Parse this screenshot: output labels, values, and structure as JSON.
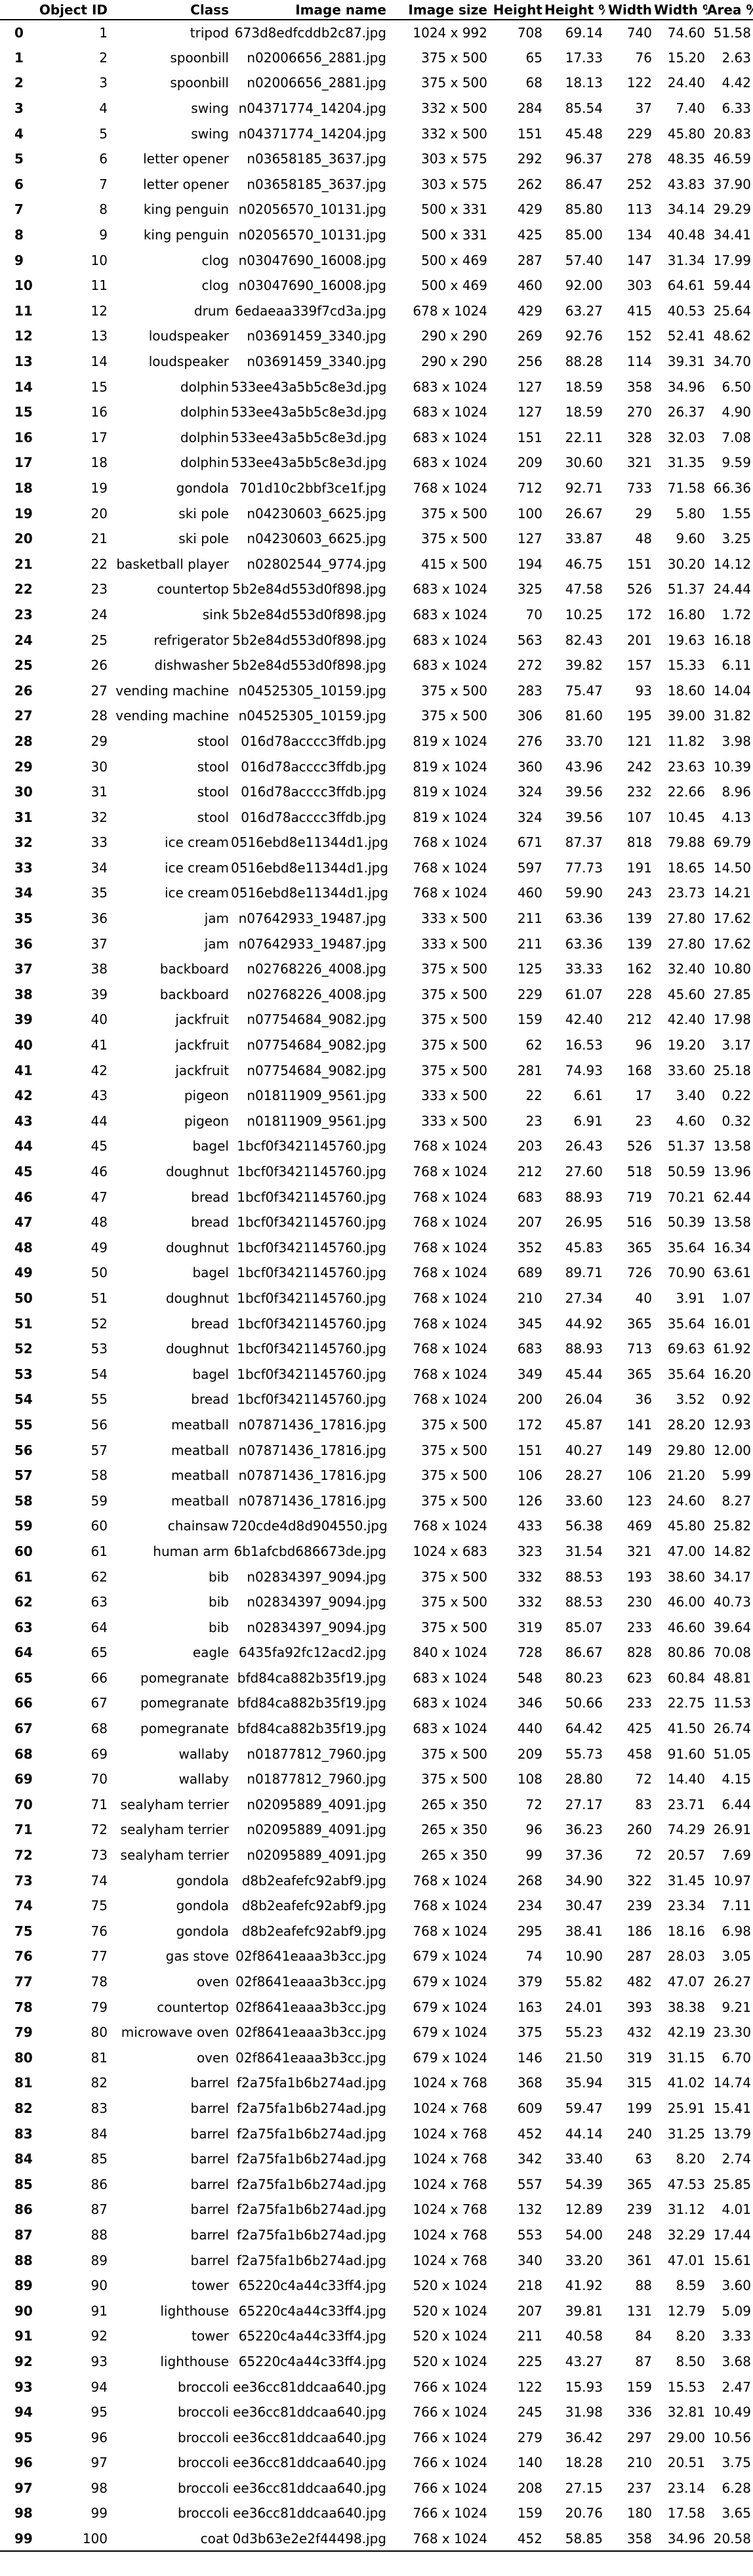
{
  "table": {
    "columns": [
      "",
      "Object ID",
      "Class",
      "Image name",
      "Image size",
      "Height",
      "Height %",
      "Width",
      "Width %",
      "Area %"
    ],
    "rows": [
      [
        "0",
        "1",
        "tripod",
        "673d8edfcddb2c87.jpg",
        "1024 x 992",
        "708",
        "69.14",
        "740",
        "74.60",
        "51.58"
      ],
      [
        "1",
        "2",
        "spoonbill",
        "n02006656_2881.jpg",
        "375 x 500",
        "65",
        "17.33",
        "76",
        "15.20",
        "2.63"
      ],
      [
        "2",
        "3",
        "spoonbill",
        "n02006656_2881.jpg",
        "375 x 500",
        "68",
        "18.13",
        "122",
        "24.40",
        "4.42"
      ],
      [
        "3",
        "4",
        "swing",
        "n04371774_14204.jpg",
        "332 x 500",
        "284",
        "85.54",
        "37",
        "7.40",
        "6.33"
      ],
      [
        "4",
        "5",
        "swing",
        "n04371774_14204.jpg",
        "332 x 500",
        "151",
        "45.48",
        "229",
        "45.80",
        "20.83"
      ],
      [
        "5",
        "6",
        "letter opener",
        "n03658185_3637.jpg",
        "303 x 575",
        "292",
        "96.37",
        "278",
        "48.35",
        "46.59"
      ],
      [
        "6",
        "7",
        "letter opener",
        "n03658185_3637.jpg",
        "303 x 575",
        "262",
        "86.47",
        "252",
        "43.83",
        "37.90"
      ],
      [
        "7",
        "8",
        "king penguin",
        "n02056570_10131.jpg",
        "500 x 331",
        "429",
        "85.80",
        "113",
        "34.14",
        "29.29"
      ],
      [
        "8",
        "9",
        "king penguin",
        "n02056570_10131.jpg",
        "500 x 331",
        "425",
        "85.00",
        "134",
        "40.48",
        "34.41"
      ],
      [
        "9",
        "10",
        "clog",
        "n03047690_16008.jpg",
        "500 x 469",
        "287",
        "57.40",
        "147",
        "31.34",
        "17.99"
      ],
      [
        "10",
        "11",
        "clog",
        "n03047690_16008.jpg",
        "500 x 469",
        "460",
        "92.00",
        "303",
        "64.61",
        "59.44"
      ],
      [
        "11",
        "12",
        "drum",
        "6edaeaa339f7cd3a.jpg",
        "678 x 1024",
        "429",
        "63.27",
        "415",
        "40.53",
        "25.64"
      ],
      [
        "12",
        "13",
        "loudspeaker",
        "n03691459_3340.jpg",
        "290 x 290",
        "269",
        "92.76",
        "152",
        "52.41",
        "48.62"
      ],
      [
        "13",
        "14",
        "loudspeaker",
        "n03691459_3340.jpg",
        "290 x 290",
        "256",
        "88.28",
        "114",
        "39.31",
        "34.70"
      ],
      [
        "14",
        "15",
        "dolphin",
        "533ee43a5b5c8e3d.jpg",
        "683 x 1024",
        "127",
        "18.59",
        "358",
        "34.96",
        "6.50"
      ],
      [
        "15",
        "16",
        "dolphin",
        "533ee43a5b5c8e3d.jpg",
        "683 x 1024",
        "127",
        "18.59",
        "270",
        "26.37",
        "4.90"
      ],
      [
        "16",
        "17",
        "dolphin",
        "533ee43a5b5c8e3d.jpg",
        "683 x 1024",
        "151",
        "22.11",
        "328",
        "32.03",
        "7.08"
      ],
      [
        "17",
        "18",
        "dolphin",
        "533ee43a5b5c8e3d.jpg",
        "683 x 1024",
        "209",
        "30.60",
        "321",
        "31.35",
        "9.59"
      ],
      [
        "18",
        "19",
        "gondola",
        "701d10c2bbf3ce1f.jpg",
        "768 x 1024",
        "712",
        "92.71",
        "733",
        "71.58",
        "66.36"
      ],
      [
        "19",
        "20",
        "ski pole",
        "n04230603_6625.jpg",
        "375 x 500",
        "100",
        "26.67",
        "29",
        "5.80",
        "1.55"
      ],
      [
        "20",
        "21",
        "ski pole",
        "n04230603_6625.jpg",
        "375 x 500",
        "127",
        "33.87",
        "48",
        "9.60",
        "3.25"
      ],
      [
        "21",
        "22",
        "basketball player",
        "n02802544_9774.jpg",
        "415 x 500",
        "194",
        "46.75",
        "151",
        "30.20",
        "14.12"
      ],
      [
        "22",
        "23",
        "countertop",
        "5b2e84d553d0f898.jpg",
        "683 x 1024",
        "325",
        "47.58",
        "526",
        "51.37",
        "24.44"
      ],
      [
        "23",
        "24",
        "sink",
        "5b2e84d553d0f898.jpg",
        "683 x 1024",
        "70",
        "10.25",
        "172",
        "16.80",
        "1.72"
      ],
      [
        "24",
        "25",
        "refrigerator",
        "5b2e84d553d0f898.jpg",
        "683 x 1024",
        "563",
        "82.43",
        "201",
        "19.63",
        "16.18"
      ],
      [
        "25",
        "26",
        "dishwasher",
        "5b2e84d553d0f898.jpg",
        "683 x 1024",
        "272",
        "39.82",
        "157",
        "15.33",
        "6.11"
      ],
      [
        "26",
        "27",
        "vending machine",
        "n04525305_10159.jpg",
        "375 x 500",
        "283",
        "75.47",
        "93",
        "18.60",
        "14.04"
      ],
      [
        "27",
        "28",
        "vending machine",
        "n04525305_10159.jpg",
        "375 x 500",
        "306",
        "81.60",
        "195",
        "39.00",
        "31.82"
      ],
      [
        "28",
        "29",
        "stool",
        "016d78acccc3ffdb.jpg",
        "819 x 1024",
        "276",
        "33.70",
        "121",
        "11.82",
        "3.98"
      ],
      [
        "29",
        "30",
        "stool",
        "016d78acccc3ffdb.jpg",
        "819 x 1024",
        "360",
        "43.96",
        "242",
        "23.63",
        "10.39"
      ],
      [
        "30",
        "31",
        "stool",
        "016d78acccc3ffdb.jpg",
        "819 x 1024",
        "324",
        "39.56",
        "232",
        "22.66",
        "8.96"
      ],
      [
        "31",
        "32",
        "stool",
        "016d78acccc3ffdb.jpg",
        "819 x 1024",
        "324",
        "39.56",
        "107",
        "10.45",
        "4.13"
      ],
      [
        "32",
        "33",
        "ice cream",
        "0516ebd8e11344d1.jpg",
        "768 x 1024",
        "671",
        "87.37",
        "818",
        "79.88",
        "69.79"
      ],
      [
        "33",
        "34",
        "ice cream",
        "0516ebd8e11344d1.jpg",
        "768 x 1024",
        "597",
        "77.73",
        "191",
        "18.65",
        "14.50"
      ],
      [
        "34",
        "35",
        "ice cream",
        "0516ebd8e11344d1.jpg",
        "768 x 1024",
        "460",
        "59.90",
        "243",
        "23.73",
        "14.21"
      ],
      [
        "35",
        "36",
        "jam",
        "n07642933_19487.jpg",
        "333 x 500",
        "211",
        "63.36",
        "139",
        "27.80",
        "17.62"
      ],
      [
        "36",
        "37",
        "jam",
        "n07642933_19487.jpg",
        "333 x 500",
        "211",
        "63.36",
        "139",
        "27.80",
        "17.62"
      ],
      [
        "37",
        "38",
        "backboard",
        "n02768226_4008.jpg",
        "375 x 500",
        "125",
        "33.33",
        "162",
        "32.40",
        "10.80"
      ],
      [
        "38",
        "39",
        "backboard",
        "n02768226_4008.jpg",
        "375 x 500",
        "229",
        "61.07",
        "228",
        "45.60",
        "27.85"
      ],
      [
        "39",
        "40",
        "jackfruit",
        "n07754684_9082.jpg",
        "375 x 500",
        "159",
        "42.40",
        "212",
        "42.40",
        "17.98"
      ],
      [
        "40",
        "41",
        "jackfruit",
        "n07754684_9082.jpg",
        "375 x 500",
        "62",
        "16.53",
        "96",
        "19.20",
        "3.17"
      ],
      [
        "41",
        "42",
        "jackfruit",
        "n07754684_9082.jpg",
        "375 x 500",
        "281",
        "74.93",
        "168",
        "33.60",
        "25.18"
      ],
      [
        "42",
        "43",
        "pigeon",
        "n01811909_9561.jpg",
        "333 x 500",
        "22",
        "6.61",
        "17",
        "3.40",
        "0.22"
      ],
      [
        "43",
        "44",
        "pigeon",
        "n01811909_9561.jpg",
        "333 x 500",
        "23",
        "6.91",
        "23",
        "4.60",
        "0.32"
      ],
      [
        "44",
        "45",
        "bagel",
        "1bcf0f3421145760.jpg",
        "768 x 1024",
        "203",
        "26.43",
        "526",
        "51.37",
        "13.58"
      ],
      [
        "45",
        "46",
        "doughnut",
        "1bcf0f3421145760.jpg",
        "768 x 1024",
        "212",
        "27.60",
        "518",
        "50.59",
        "13.96"
      ],
      [
        "46",
        "47",
        "bread",
        "1bcf0f3421145760.jpg",
        "768 x 1024",
        "683",
        "88.93",
        "719",
        "70.21",
        "62.44"
      ],
      [
        "47",
        "48",
        "bread",
        "1bcf0f3421145760.jpg",
        "768 x 1024",
        "207",
        "26.95",
        "516",
        "50.39",
        "13.58"
      ],
      [
        "48",
        "49",
        "doughnut",
        "1bcf0f3421145760.jpg",
        "768 x 1024",
        "352",
        "45.83",
        "365",
        "35.64",
        "16.34"
      ],
      [
        "49",
        "50",
        "bagel",
        "1bcf0f3421145760.jpg",
        "768 x 1024",
        "689",
        "89.71",
        "726",
        "70.90",
        "63.61"
      ],
      [
        "50",
        "51",
        "doughnut",
        "1bcf0f3421145760.jpg",
        "768 x 1024",
        "210",
        "27.34",
        "40",
        "3.91",
        "1.07"
      ],
      [
        "51",
        "52",
        "bread",
        "1bcf0f3421145760.jpg",
        "768 x 1024",
        "345",
        "44.92",
        "365",
        "35.64",
        "16.01"
      ],
      [
        "52",
        "53",
        "doughnut",
        "1bcf0f3421145760.jpg",
        "768 x 1024",
        "683",
        "88.93",
        "713",
        "69.63",
        "61.92"
      ],
      [
        "53",
        "54",
        "bagel",
        "1bcf0f3421145760.jpg",
        "768 x 1024",
        "349",
        "45.44",
        "365",
        "35.64",
        "16.20"
      ],
      [
        "54",
        "55",
        "bread",
        "1bcf0f3421145760.jpg",
        "768 x 1024",
        "200",
        "26.04",
        "36",
        "3.52",
        "0.92"
      ],
      [
        "55",
        "56",
        "meatball",
        "n07871436_17816.jpg",
        "375 x 500",
        "172",
        "45.87",
        "141",
        "28.20",
        "12.93"
      ],
      [
        "56",
        "57",
        "meatball",
        "n07871436_17816.jpg",
        "375 x 500",
        "151",
        "40.27",
        "149",
        "29.80",
        "12.00"
      ],
      [
        "57",
        "58",
        "meatball",
        "n07871436_17816.jpg",
        "375 x 500",
        "106",
        "28.27",
        "106",
        "21.20",
        "5.99"
      ],
      [
        "58",
        "59",
        "meatball",
        "n07871436_17816.jpg",
        "375 x 500",
        "126",
        "33.60",
        "123",
        "24.60",
        "8.27"
      ],
      [
        "59",
        "60",
        "chainsaw",
        "720cde4d8d904550.jpg",
        "768 x 1024",
        "433",
        "56.38",
        "469",
        "45.80",
        "25.82"
      ],
      [
        "60",
        "61",
        "human arm",
        "6b1afcbd686673de.jpg",
        "1024 x 683",
        "323",
        "31.54",
        "321",
        "47.00",
        "14.82"
      ],
      [
        "61",
        "62",
        "bib",
        "n02834397_9094.jpg",
        "375 x 500",
        "332",
        "88.53",
        "193",
        "38.60",
        "34.17"
      ],
      [
        "62",
        "63",
        "bib",
        "n02834397_9094.jpg",
        "375 x 500",
        "332",
        "88.53",
        "230",
        "46.00",
        "40.73"
      ],
      [
        "63",
        "64",
        "bib",
        "n02834397_9094.jpg",
        "375 x 500",
        "319",
        "85.07",
        "233",
        "46.60",
        "39.64"
      ],
      [
        "64",
        "65",
        "eagle",
        "6435fa92fc12acd2.jpg",
        "840 x 1024",
        "728",
        "86.67",
        "828",
        "80.86",
        "70.08"
      ],
      [
        "65",
        "66",
        "pomegranate",
        "bfd84ca882b35f19.jpg",
        "683 x 1024",
        "548",
        "80.23",
        "623",
        "60.84",
        "48.81"
      ],
      [
        "66",
        "67",
        "pomegranate",
        "bfd84ca882b35f19.jpg",
        "683 x 1024",
        "346",
        "50.66",
        "233",
        "22.75",
        "11.53"
      ],
      [
        "67",
        "68",
        "pomegranate",
        "bfd84ca882b35f19.jpg",
        "683 x 1024",
        "440",
        "64.42",
        "425",
        "41.50",
        "26.74"
      ],
      [
        "68",
        "69",
        "wallaby",
        "n01877812_7960.jpg",
        "375 x 500",
        "209",
        "55.73",
        "458",
        "91.60",
        "51.05"
      ],
      [
        "69",
        "70",
        "wallaby",
        "n01877812_7960.jpg",
        "375 x 500",
        "108",
        "28.80",
        "72",
        "14.40",
        "4.15"
      ],
      [
        "70",
        "71",
        "sealyham terrier",
        "n02095889_4091.jpg",
        "265 x 350",
        "72",
        "27.17",
        "83",
        "23.71",
        "6.44"
      ],
      [
        "71",
        "72",
        "sealyham terrier",
        "n02095889_4091.jpg",
        "265 x 350",
        "96",
        "36.23",
        "260",
        "74.29",
        "26.91"
      ],
      [
        "72",
        "73",
        "sealyham terrier",
        "n02095889_4091.jpg",
        "265 x 350",
        "99",
        "37.36",
        "72",
        "20.57",
        "7.69"
      ],
      [
        "73",
        "74",
        "gondola",
        "d8b2eafefc92abf9.jpg",
        "768 x 1024",
        "268",
        "34.90",
        "322",
        "31.45",
        "10.97"
      ],
      [
        "74",
        "75",
        "gondola",
        "d8b2eafefc92abf9.jpg",
        "768 x 1024",
        "234",
        "30.47",
        "239",
        "23.34",
        "7.11"
      ],
      [
        "75",
        "76",
        "gondola",
        "d8b2eafefc92abf9.jpg",
        "768 x 1024",
        "295",
        "38.41",
        "186",
        "18.16",
        "6.98"
      ],
      [
        "76",
        "77",
        "gas stove",
        "02f8641eaaa3b3cc.jpg",
        "679 x 1024",
        "74",
        "10.90",
        "287",
        "28.03",
        "3.05"
      ],
      [
        "77",
        "78",
        "oven",
        "02f8641eaaa3b3cc.jpg",
        "679 x 1024",
        "379",
        "55.82",
        "482",
        "47.07",
        "26.27"
      ],
      [
        "78",
        "79",
        "countertop",
        "02f8641eaaa3b3cc.jpg",
        "679 x 1024",
        "163",
        "24.01",
        "393",
        "38.38",
        "9.21"
      ],
      [
        "79",
        "80",
        "microwave oven",
        "02f8641eaaa3b3cc.jpg",
        "679 x 1024",
        "375",
        "55.23",
        "432",
        "42.19",
        "23.30"
      ],
      [
        "80",
        "81",
        "oven",
        "02f8641eaaa3b3cc.jpg",
        "679 x 1024",
        "146",
        "21.50",
        "319",
        "31.15",
        "6.70"
      ],
      [
        "81",
        "82",
        "barrel",
        "f2a75fa1b6b274ad.jpg",
        "1024 x 768",
        "368",
        "35.94",
        "315",
        "41.02",
        "14.74"
      ],
      [
        "82",
        "83",
        "barrel",
        "f2a75fa1b6b274ad.jpg",
        "1024 x 768",
        "609",
        "59.47",
        "199",
        "25.91",
        "15.41"
      ],
      [
        "83",
        "84",
        "barrel",
        "f2a75fa1b6b274ad.jpg",
        "1024 x 768",
        "452",
        "44.14",
        "240",
        "31.25",
        "13.79"
      ],
      [
        "84",
        "85",
        "barrel",
        "f2a75fa1b6b274ad.jpg",
        "1024 x 768",
        "342",
        "33.40",
        "63",
        "8.20",
        "2.74"
      ],
      [
        "85",
        "86",
        "barrel",
        "f2a75fa1b6b274ad.jpg",
        "1024 x 768",
        "557",
        "54.39",
        "365",
        "47.53",
        "25.85"
      ],
      [
        "86",
        "87",
        "barrel",
        "f2a75fa1b6b274ad.jpg",
        "1024 x 768",
        "132",
        "12.89",
        "239",
        "31.12",
        "4.01"
      ],
      [
        "87",
        "88",
        "barrel",
        "f2a75fa1b6b274ad.jpg",
        "1024 x 768",
        "553",
        "54.00",
        "248",
        "32.29",
        "17.44"
      ],
      [
        "88",
        "89",
        "barrel",
        "f2a75fa1b6b274ad.jpg",
        "1024 x 768",
        "340",
        "33.20",
        "361",
        "47.01",
        "15.61"
      ],
      [
        "89",
        "90",
        "tower",
        "65220c4a44c33ff4.jpg",
        "520 x 1024",
        "218",
        "41.92",
        "88",
        "8.59",
        "3.60"
      ],
      [
        "90",
        "91",
        "lighthouse",
        "65220c4a44c33ff4.jpg",
        "520 x 1024",
        "207",
        "39.81",
        "131",
        "12.79",
        "5.09"
      ],
      [
        "91",
        "92",
        "tower",
        "65220c4a44c33ff4.jpg",
        "520 x 1024",
        "211",
        "40.58",
        "84",
        "8.20",
        "3.33"
      ],
      [
        "92",
        "93",
        "lighthouse",
        "65220c4a44c33ff4.jpg",
        "520 x 1024",
        "225",
        "43.27",
        "87",
        "8.50",
        "3.68"
      ],
      [
        "93",
        "94",
        "broccoli",
        "ee36cc81ddcaa640.jpg",
        "766 x 1024",
        "122",
        "15.93",
        "159",
        "15.53",
        "2.47"
      ],
      [
        "94",
        "95",
        "broccoli",
        "ee36cc81ddcaa640.jpg",
        "766 x 1024",
        "245",
        "31.98",
        "336",
        "32.81",
        "10.49"
      ],
      [
        "95",
        "96",
        "broccoli",
        "ee36cc81ddcaa640.jpg",
        "766 x 1024",
        "279",
        "36.42",
        "297",
        "29.00",
        "10.56"
      ],
      [
        "96",
        "97",
        "broccoli",
        "ee36cc81ddcaa640.jpg",
        "766 x 1024",
        "140",
        "18.28",
        "210",
        "20.51",
        "3.75"
      ],
      [
        "97",
        "98",
        "broccoli",
        "ee36cc81ddcaa640.jpg",
        "766 x 1024",
        "208",
        "27.15",
        "237",
        "23.14",
        "6.28"
      ],
      [
        "98",
        "99",
        "broccoli",
        "ee36cc81ddcaa640.jpg",
        "766 x 1024",
        "159",
        "20.76",
        "180",
        "17.58",
        "3.65"
      ],
      [
        "99",
        "100",
        "coat",
        "0d3b63e2e2f44498.jpg",
        "768 x 1024",
        "452",
        "58.85",
        "358",
        "34.96",
        "20.58"
      ]
    ]
  }
}
